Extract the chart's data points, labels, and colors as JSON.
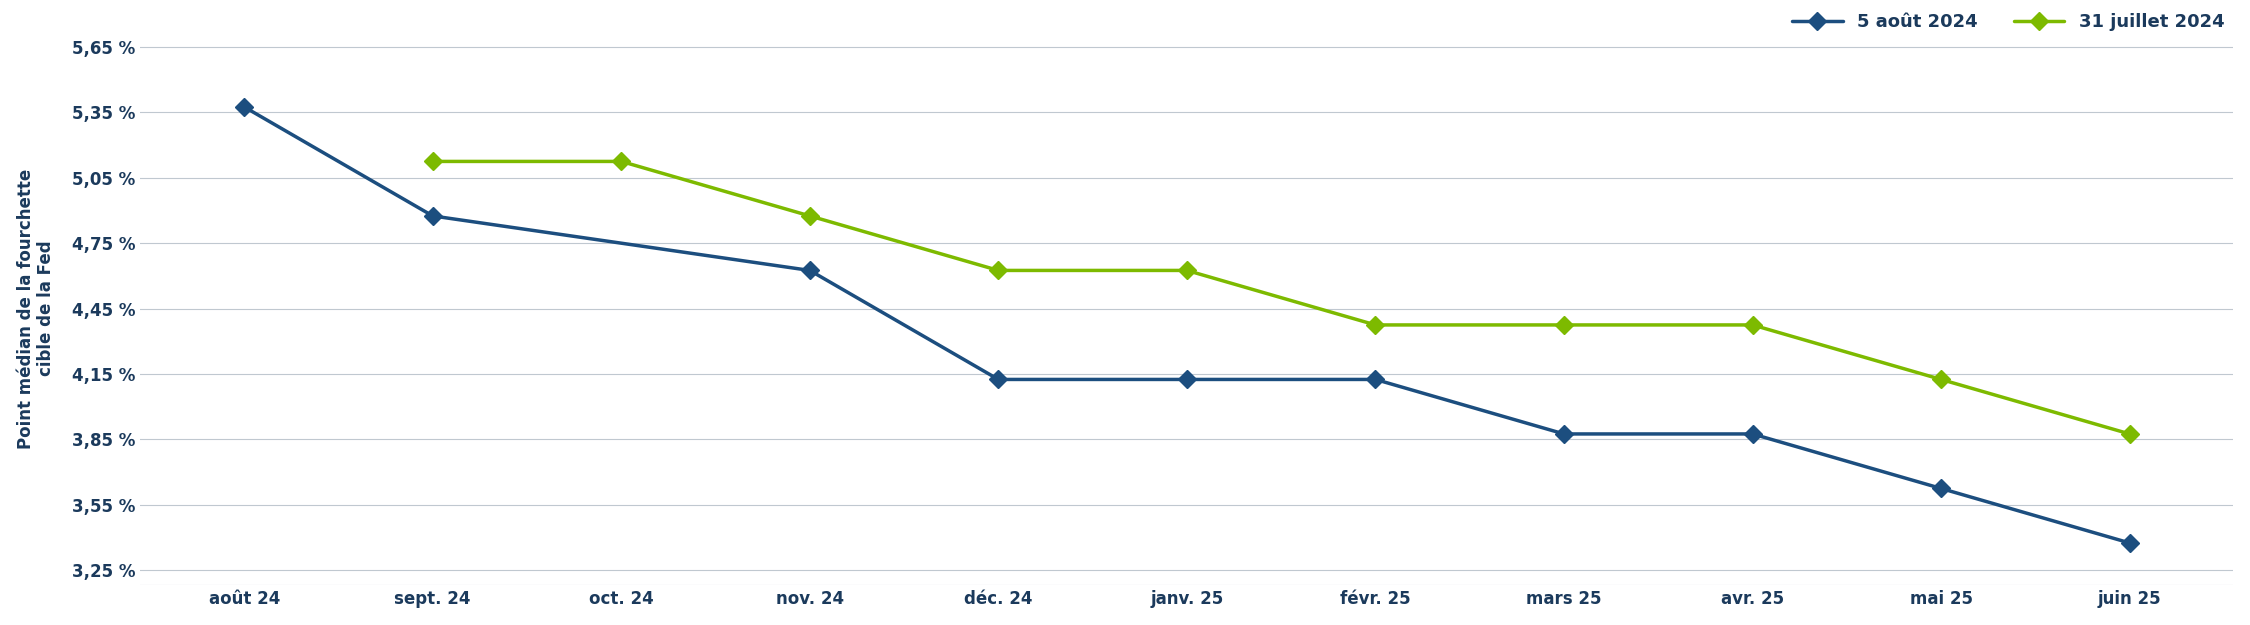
{
  "x_labels": [
    "août 24",
    "sept. 24",
    "oct. 24",
    "nov. 24",
    "déc. 24",
    "janv. 25",
    "févr. 25",
    "mars 25",
    "avr. 25",
    "mai 25",
    "juin 25"
  ],
  "blue_values": [
    5.375,
    4.875,
    null,
    4.625,
    4.125,
    4.125,
    4.125,
    3.875,
    3.875,
    3.625,
    3.375
  ],
  "green_values": [
    null,
    5.125,
    5.125,
    4.875,
    4.625,
    4.625,
    4.375,
    4.375,
    4.375,
    4.125,
    3.875
  ],
  "blue_color": "#1c4e7f",
  "green_color": "#7dba00",
  "blue_label": "5 août 2024",
  "green_label": "31 juillet 2024",
  "ylabel": "Point médian de la fourchette\ncible de la Fed",
  "yticks": [
    3.25,
    3.55,
    3.85,
    4.15,
    4.45,
    4.75,
    5.05,
    5.35,
    5.65
  ],
  "ytick_labels": [
    "3,25 %",
    "3,55 %",
    "3,85 %",
    "4,15 %",
    "4,45 %",
    "4,75 %",
    "5,05 %",
    "5,35 %",
    "5,65 %"
  ],
  "ylim": [
    3.18,
    5.72
  ],
  "background_color": "#ffffff",
  "grid_color": "#c0c8d0",
  "line_width": 2.5,
  "marker_size": 9,
  "marker_style": "D",
  "label_fontsize": 12,
  "tick_fontsize": 12,
  "legend_fontsize": 13
}
